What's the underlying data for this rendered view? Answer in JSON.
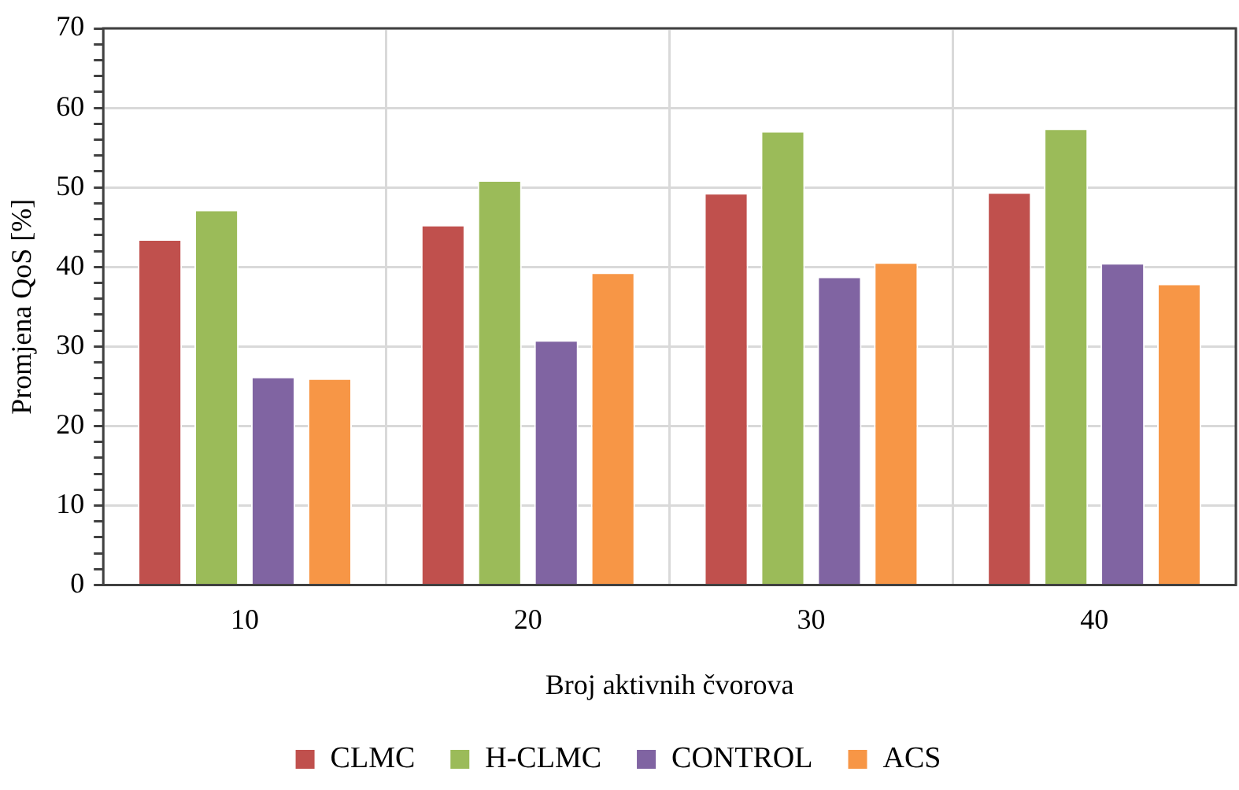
{
  "chart_data": {
    "type": "bar",
    "xlabel": "Broj aktivnih čvorova",
    "ylabel": "Promjena QoS [%]",
    "categories": [
      "10",
      "20",
      "30",
      "40"
    ],
    "series": [
      {
        "name": "CLMC",
        "color": "#c0504d",
        "values": [
          43.5,
          45.3,
          49.3,
          49.4
        ]
      },
      {
        "name": "H-CLMC",
        "color": "#9bbb59",
        "values": [
          47.2,
          50.9,
          57.1,
          57.4
        ]
      },
      {
        "name": "CONTROL",
        "color": "#8064a2",
        "values": [
          26.2,
          30.8,
          38.8,
          40.5
        ]
      },
      {
        "name": "ACS",
        "color": "#f79646",
        "values": [
          26.0,
          39.3,
          40.6,
          37.9
        ]
      }
    ],
    "ylim": [
      0,
      70
    ],
    "yticks": [
      0,
      {
        "value": 2,
        "label": null
      },
      {
        "value": 4,
        "label": null
      },
      {
        "value": 6,
        "label": null
      },
      {
        "value": 8,
        "label": null
      },
      10,
      {
        "value": 12,
        "label": null
      },
      {
        "value": 14,
        "label": null
      },
      {
        "value": 16,
        "label": null
      },
      {
        "value": 18,
        "label": null
      },
      20,
      {
        "value": 22,
        "label": null
      },
      {
        "value": 24,
        "label": null
      },
      {
        "value": 26,
        "label": null
      },
      {
        "value": 28,
        "label": null
      },
      30,
      {
        "value": 32,
        "label": null
      },
      {
        "value": 34,
        "label": null
      },
      {
        "value": 36,
        "label": null
      },
      {
        "value": 38,
        "label": null
      },
      40,
      {
        "value": 42,
        "label": null
      },
      {
        "value": 44,
        "label": null
      },
      {
        "value": 46,
        "label": null
      },
      {
        "value": 48,
        "label": null
      },
      50,
      {
        "value": 52,
        "label": null
      },
      {
        "value": 54,
        "label": null
      },
      {
        "value": 56,
        "label": null
      },
      {
        "value": 58,
        "label": null
      },
      60,
      {
        "value": 62,
        "label": null
      },
      {
        "value": 64,
        "label": null
      },
      {
        "value": 66,
        "label": null
      },
      {
        "value": 68,
        "label": null
      },
      70
    ],
    "grid": true,
    "legend": "bottom"
  }
}
